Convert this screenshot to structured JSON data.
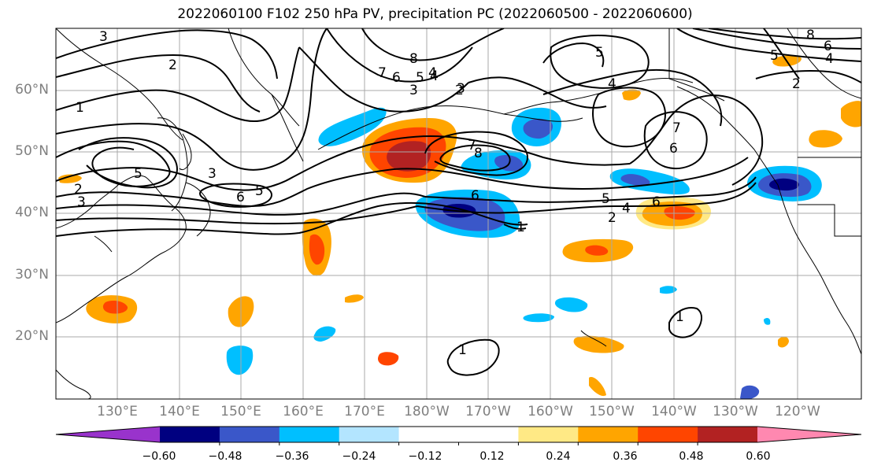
{
  "title": "2022060100 F102 250 hPa PV, precipitation PC (2022060500 - 2022060600)",
  "lat_labels": [
    "60°N",
    "50°N",
    "40°N",
    "30°N",
    "20°N"
  ],
  "lat_values": [
    60,
    50,
    40,
    30,
    20
  ],
  "lon_labels": [
    "130°E",
    "140°E",
    "150°E",
    "160°E",
    "170°E",
    "180°W",
    "170°W",
    "160°W",
    "150°W",
    "140°W",
    "130°W",
    "120°W"
  ],
  "lon_values": [
    130,
    140,
    150,
    160,
    170,
    180,
    190,
    200,
    210,
    220,
    230,
    240
  ],
  "colorbar": {
    "colors": [
      "#9933cc",
      "#000080",
      "#3a57c9",
      "#00bfff",
      "#b3e5ff",
      "#ffffff",
      "#ffffff",
      "#ffe985",
      "#ffa500",
      "#ff4500",
      "#b22222",
      "#ff88b0"
    ],
    "tick_labels": [
      "−0.60",
      "−0.48",
      "−0.36",
      "−0.24",
      "−0.12",
      "0.12",
      "0.24",
      "0.36",
      "0.48",
      "0.60"
    ],
    "tick_values": [
      -0.6,
      -0.48,
      -0.36,
      -0.24,
      -0.12,
      0.12,
      0.24,
      0.36,
      0.48,
      0.6
    ]
  },
  "contour_labels": [
    "3",
    "2",
    "1",
    "5",
    "3",
    "6",
    "5",
    "3",
    "2",
    "3",
    "8",
    "7",
    "6",
    "5",
    "4",
    "3",
    "7",
    "8",
    "6",
    "5",
    "4",
    "2",
    "5",
    "4",
    "7",
    "6",
    "8",
    "1",
    "6",
    "6",
    "5",
    "4",
    "2",
    "2",
    "4",
    "1",
    "1"
  ],
  "precip_colors": {
    "dark_blue": "#000080",
    "mid_blue": "#3a57c9",
    "cyan": "#00bfff",
    "light_yellow": "#ffe985",
    "orange": "#ffa500",
    "red_orange": "#ff4500",
    "dark_red": "#b22222"
  }
}
